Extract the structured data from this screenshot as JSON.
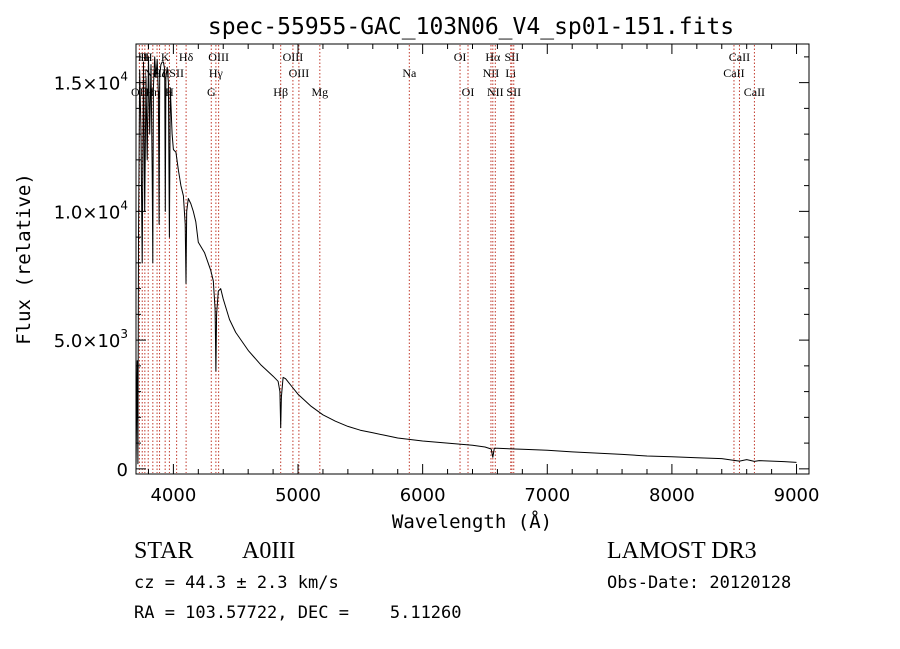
{
  "chart_data": {
    "type": "line",
    "title": "spec-55955-GAC_103N06_V4_sp01-151.fits",
    "xlabel": "Wavelength (Å)",
    "ylabel": "Flux (relative)",
    "xlim": [
      3700,
      9100
    ],
    "ylim": [
      -200,
      16500
    ],
    "x_ticks": [
      4000,
      5000,
      6000,
      7000,
      8000,
      9000
    ],
    "x_tick_labels": [
      "4000",
      "5000",
      "6000",
      "7000",
      "8000",
      "9000"
    ],
    "y_ticks": [
      {
        "value": 0,
        "mantissa": "0",
        "exp": ""
      },
      {
        "value": 5000,
        "mantissa": "5.0×10",
        "exp": "3"
      },
      {
        "value": 10000,
        "mantissa": "1.0×10",
        "exp": "4"
      },
      {
        "value": 15000,
        "mantissa": "1.5×10",
        "exp": "4"
      }
    ],
    "series": [
      {
        "name": "spectrum",
        "x": [
          3700,
          3710,
          3715,
          3720,
          3730,
          3740,
          3750,
          3760,
          3770,
          3780,
          3790,
          3800,
          3810,
          3820,
          3830,
          3835,
          3840,
          3850,
          3860,
          3870,
          3880,
          3885,
          3890,
          3900,
          3910,
          3920,
          3930,
          3935,
          3940,
          3950,
          3960,
          3968,
          3975,
          3980,
          3990,
          4000,
          4020,
          4040,
          4060,
          4080,
          4095,
          4101,
          4107,
          4120,
          4140,
          4160,
          4180,
          4200,
          4250,
          4300,
          4320,
          4335,
          4341,
          4347,
          4360,
          4380,
          4400,
          4450,
          4500,
          4600,
          4700,
          4800,
          4840,
          4855,
          4861,
          4867,
          4880,
          4900,
          4950,
          5000,
          5100,
          5200,
          5300,
          5400,
          5500,
          5600,
          5700,
          5800,
          5900,
          6000,
          6200,
          6400,
          6500,
          6550,
          6563,
          6575,
          6600,
          6800,
          7000,
          7200,
          7400,
          7600,
          7800,
          8000,
          8200,
          8400,
          8498,
          8542,
          8600,
          8662,
          8700,
          8800,
          8900,
          9000
        ],
        "y": [
          0,
          4200,
          200,
          9000,
          15500,
          13000,
          8000,
          15800,
          10000,
          15200,
          12000,
          16000,
          13000,
          15700,
          11500,
          8000,
          14800,
          16000,
          15200,
          15900,
          14500,
          9500,
          15300,
          15700,
          15800,
          15800,
          15500,
          10000,
          15200,
          15600,
          15000,
          9000,
          14800,
          14200,
          13000,
          12400,
          12300,
          11600,
          11000,
          10600,
          9500,
          7200,
          10000,
          10500,
          10300,
          10000,
          9600,
          8800,
          8400,
          7700,
          7300,
          6200,
          3800,
          6000,
          6900,
          7000,
          6600,
          5800,
          5300,
          4600,
          4050,
          3600,
          3400,
          3000,
          1600,
          2800,
          3550,
          3500,
          3200,
          2900,
          2450,
          2100,
          1850,
          1650,
          1500,
          1400,
          1300,
          1200,
          1140,
          1080,
          1000,
          920,
          850,
          770,
          450,
          800,
          800,
          760,
          720,
          660,
          610,
          560,
          500,
          470,
          430,
          400,
          330,
          300,
          360,
          290,
          320,
          300,
          280,
          250
        ]
      }
    ],
    "line_markers": [
      {
        "wavelength": 3727,
        "label": "OII",
        "row": 3
      },
      {
        "wavelength": 3750,
        "label": "H",
        "row": 1
      },
      {
        "wavelength": 3771,
        "label": "H",
        "row": 1
      },
      {
        "wavelength": 3798,
        "label": "H",
        "row": 1
      },
      {
        "wavelength": 3835,
        "label": "Hη",
        "row": 3
      },
      {
        "wavelength": 3869,
        "label": "NeIII",
        "row": 2
      },
      {
        "wavelength": 3889,
        "label": "Hζ",
        "row": 2
      },
      {
        "wavelength": 3934,
        "label": "K",
        "row": 1
      },
      {
        "wavelength": 3968,
        "label": "H",
        "row": 3
      },
      {
        "wavelength": 4026,
        "label": "SII",
        "row": 2
      },
      {
        "wavelength": 4102,
        "label": "Hδ",
        "row": 1
      },
      {
        "wavelength": 4304,
        "label": "G",
        "row": 3
      },
      {
        "wavelength": 4341,
        "label": "Hγ",
        "row": 2
      },
      {
        "wavelength": 4363,
        "label": "OIII",
        "row": 1
      },
      {
        "wavelength": 4861,
        "label": "Hβ",
        "row": 3
      },
      {
        "wavelength": 4959,
        "label": "OIII",
        "row": 1
      },
      {
        "wavelength": 5007,
        "label": "OIII",
        "row": 2
      },
      {
        "wavelength": 5175,
        "label": "Mg",
        "row": 3
      },
      {
        "wavelength": 5893,
        "label": "Na",
        "row": 2
      },
      {
        "wavelength": 6300,
        "label": "OI",
        "row": 1
      },
      {
        "wavelength": 6364,
        "label": "OI",
        "row": 3
      },
      {
        "wavelength": 6548,
        "label": "NII",
        "row": 2
      },
      {
        "wavelength": 6563,
        "label": "Hα",
        "row": 1
      },
      {
        "wavelength": 6583,
        "label": "NII",
        "row": 3
      },
      {
        "wavelength": 6707,
        "label": "Li",
        "row": 2
      },
      {
        "wavelength": 6716,
        "label": "SII",
        "row": 1
      },
      {
        "wavelength": 6731,
        "label": "SII",
        "row": 3
      },
      {
        "wavelength": 8498,
        "label": "CaII",
        "row": 2
      },
      {
        "wavelength": 8542,
        "label": "CaII",
        "row": 1
      },
      {
        "wavelength": 8662,
        "label": "CaII",
        "row": 3
      }
    ]
  },
  "info": {
    "class": "STAR",
    "subclass": "A0III",
    "survey": "LAMOST DR3",
    "redshift": "cz = 44.3 ± 2.3 km/s",
    "obs_date": "Obs-Date: 20120128",
    "coords": "RA = 103.57722, DEC =    5.11260"
  }
}
